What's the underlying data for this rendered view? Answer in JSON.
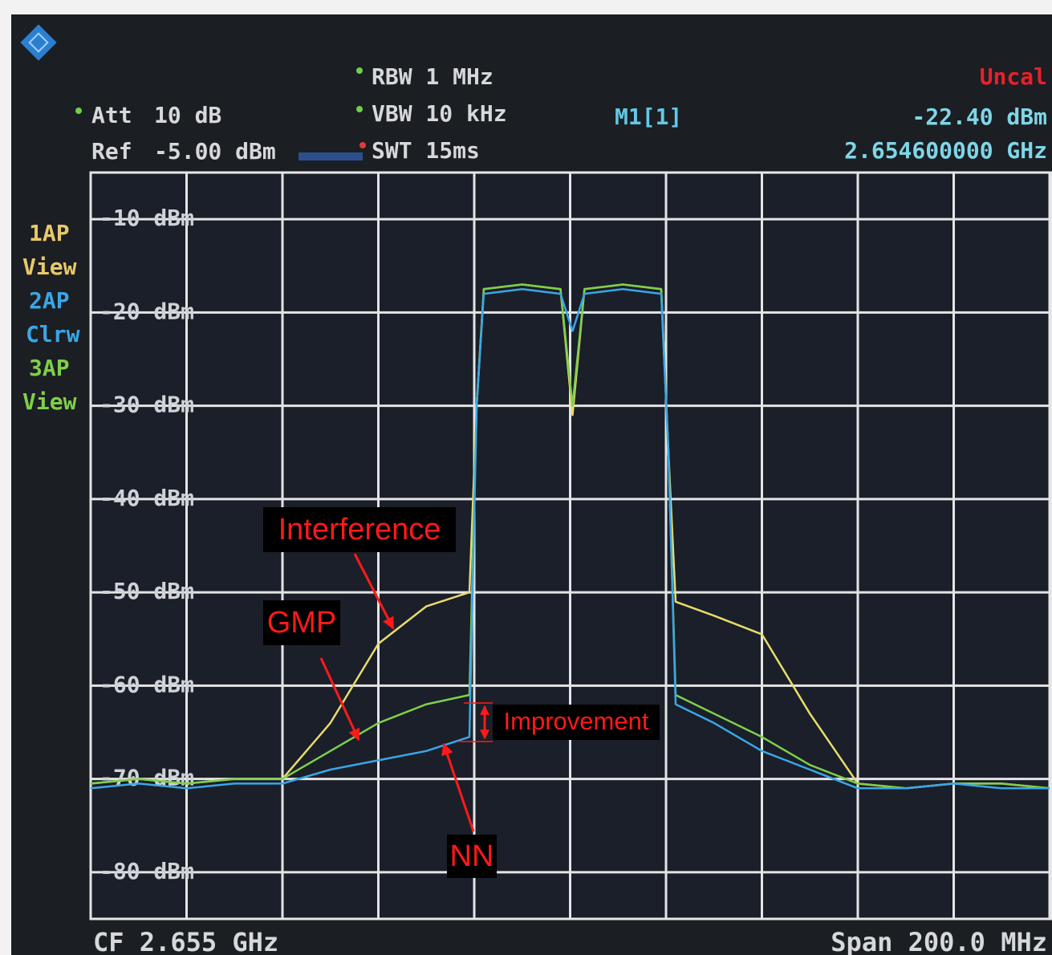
{
  "chart_data": {
    "type": "line",
    "instrument": {
      "att_label": "Att",
      "att": "10 dB",
      "ref_label": "Ref",
      "ref": "-5.00 dBm",
      "rbw": "RBW 1 MHz",
      "vbw": "VBW 10 kHz",
      "swt": "SWT 15ms",
      "marker": "M1[1]",
      "uncal": "Uncal",
      "marker_level": "-22.40 dBm",
      "marker_freq": "2.654600000 GHz",
      "traces": [
        [
          "1AP",
          "View"
        ],
        [
          "2AP",
          "Clrw"
        ],
        [
          "3AP",
          "View"
        ]
      ],
      "cf": "CF 2.655 GHz",
      "span": "Span 200.0 MHz"
    },
    "improvement_label": "Improvement",
    "x": [
      2.555,
      2.565,
      2.575,
      2.585,
      2.595,
      2.605,
      2.615,
      2.625,
      2.634,
      2.6355,
      2.637,
      2.645,
      2.653,
      2.6555,
      2.658,
      2.666,
      2.674,
      2.6755,
      2.677,
      2.685,
      2.695,
      2.705,
      2.715,
      2.725,
      2.735,
      2.745,
      2.755
    ],
    "series": [
      {
        "name": "Interference",
        "color": "#e8dc6a",
        "values": [
          -70.5,
          -70,
          -70.5,
          -70,
          -70,
          -64,
          -55.5,
          -51.5,
          -50,
          -30,
          -17.5,
          -17,
          -17.5,
          -31,
          -17.5,
          -17,
          -17.5,
          -35,
          -51,
          -52.5,
          -54.5,
          -63,
          -70.5,
          -71,
          -70.5,
          -70.5,
          -71
        ]
      },
      {
        "name": "GMP",
        "color": "#7fcf4a",
        "values": [
          -70.5,
          -70,
          -70.5,
          -70,
          -70,
          -67,
          -64,
          -62,
          -61,
          -30,
          -17.5,
          -17,
          -17.5,
          -30,
          -17.5,
          -17,
          -17.5,
          -35,
          -61,
          -63,
          -65.5,
          -68.5,
          -70.5,
          -71,
          -70.5,
          -70.5,
          -71
        ]
      },
      {
        "name": "NN",
        "color": "#3aa6e6",
        "values": [
          -71,
          -70.5,
          -71,
          -70.5,
          -70.5,
          -69,
          -68,
          -67,
          -65.5,
          -30,
          -18,
          -17.5,
          -18,
          -22,
          -18,
          -17.5,
          -18,
          -35,
          -62,
          -64,
          -67,
          -69,
          -71,
          -71,
          -70.5,
          -71,
          -71
        ]
      }
    ],
    "xlim": [
      2.555,
      2.755
    ],
    "xticks": [
      2.555,
      2.575,
      2.595,
      2.615,
      2.635,
      2.655,
      2.675,
      2.695,
      2.715,
      2.735,
      2.755
    ],
    "ylim": [
      -85,
      -5
    ],
    "yticks": [
      {
        "value": -10,
        "label": "-10 dBm"
      },
      {
        "value": -20,
        "label": "-20 dBm"
      },
      {
        "value": -30,
        "label": "-30 dBm"
      },
      {
        "value": -40,
        "label": "-40 dBm"
      },
      {
        "value": -50,
        "label": "-50 dBm"
      },
      {
        "value": -60,
        "label": "-60 dBm"
      },
      {
        "value": -70,
        "label": "-70 dBm"
      },
      {
        "value": -80,
        "label": "-80 dBm"
      }
    ],
    "grid": true
  }
}
